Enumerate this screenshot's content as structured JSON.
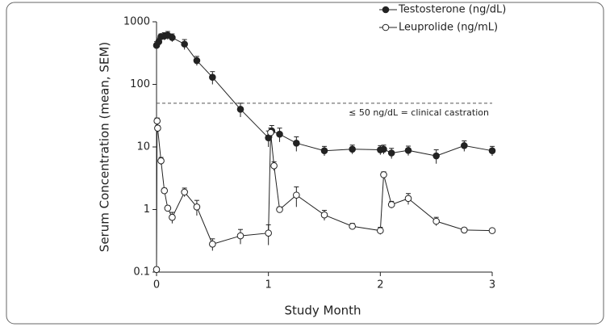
{
  "chart_data": {
    "type": "line",
    "xlabel": "Study Month",
    "ylabel": "Serum Concentration (mean, SEM)",
    "xlim": [
      0,
      3
    ],
    "xticks": [
      0,
      1,
      2,
      3
    ],
    "ylim": [
      0.1,
      1000
    ],
    "yticks": [
      0.1,
      1,
      10,
      100,
      1000
    ],
    "log_y": true,
    "legend": "upper right",
    "reference_line": {
      "value": 50,
      "label": "≤ 50 ng/dL = clinical castration"
    },
    "series": [
      {
        "name": "Testosterone (ng/dL)",
        "color": "#222222",
        "marker": "filled",
        "x": [
          0,
          0.02,
          0.04,
          0.07,
          0.1,
          0.14,
          0.25,
          0.36,
          0.5,
          0.75,
          1.0,
          1.03,
          1.1,
          1.25,
          1.5,
          1.75,
          2.0,
          2.03,
          2.1,
          2.25,
          2.5,
          2.75,
          3.0
        ],
        "values": [
          420,
          480,
          580,
          590,
          610,
          560,
          440,
          240,
          130,
          40,
          14,
          18,
          16,
          11.5,
          8.7,
          9.2,
          9,
          9.2,
          8,
          8.8,
          7.2,
          10.5,
          8.7
        ],
        "errors": [
          60,
          70,
          60,
          80,
          90,
          80,
          80,
          40,
          30,
          10,
          4,
          4,
          4,
          3,
          1.5,
          1.5,
          1.5,
          1.5,
          1.5,
          1.5,
          1.8,
          2,
          1.5
        ]
      },
      {
        "name": "Leuprolide (ng/mL)",
        "color": "#222222",
        "marker": "open",
        "x": [
          0,
          0.005,
          0.01,
          0.04,
          0.07,
          0.1,
          0.14,
          0.25,
          0.36,
          0.5,
          0.75,
          1.0,
          1.02,
          1.05,
          1.1,
          1.25,
          1.5,
          1.75,
          2.0,
          2.03,
          2.1,
          2.25,
          2.5,
          2.75,
          3.0
        ],
        "values": [
          0.11,
          26,
          20,
          6,
          2,
          1.05,
          0.75,
          1.9,
          1.1,
          0.28,
          0.38,
          0.42,
          17,
          5,
          1.0,
          1.7,
          0.82,
          0.54,
          0.46,
          3.6,
          1.2,
          1.5,
          0.65,
          0.47,
          0.46
        ],
        "errors": [
          0.01,
          3,
          2,
          0.8,
          0.2,
          0.1,
          0.15,
          0.3,
          0.3,
          0.06,
          0.1,
          0.15,
          3,
          0.8,
          0.1,
          0.6,
          0.15,
          0.06,
          0.06,
          0.4,
          0.15,
          0.3,
          0.1,
          0.04,
          0.03
        ]
      }
    ]
  }
}
